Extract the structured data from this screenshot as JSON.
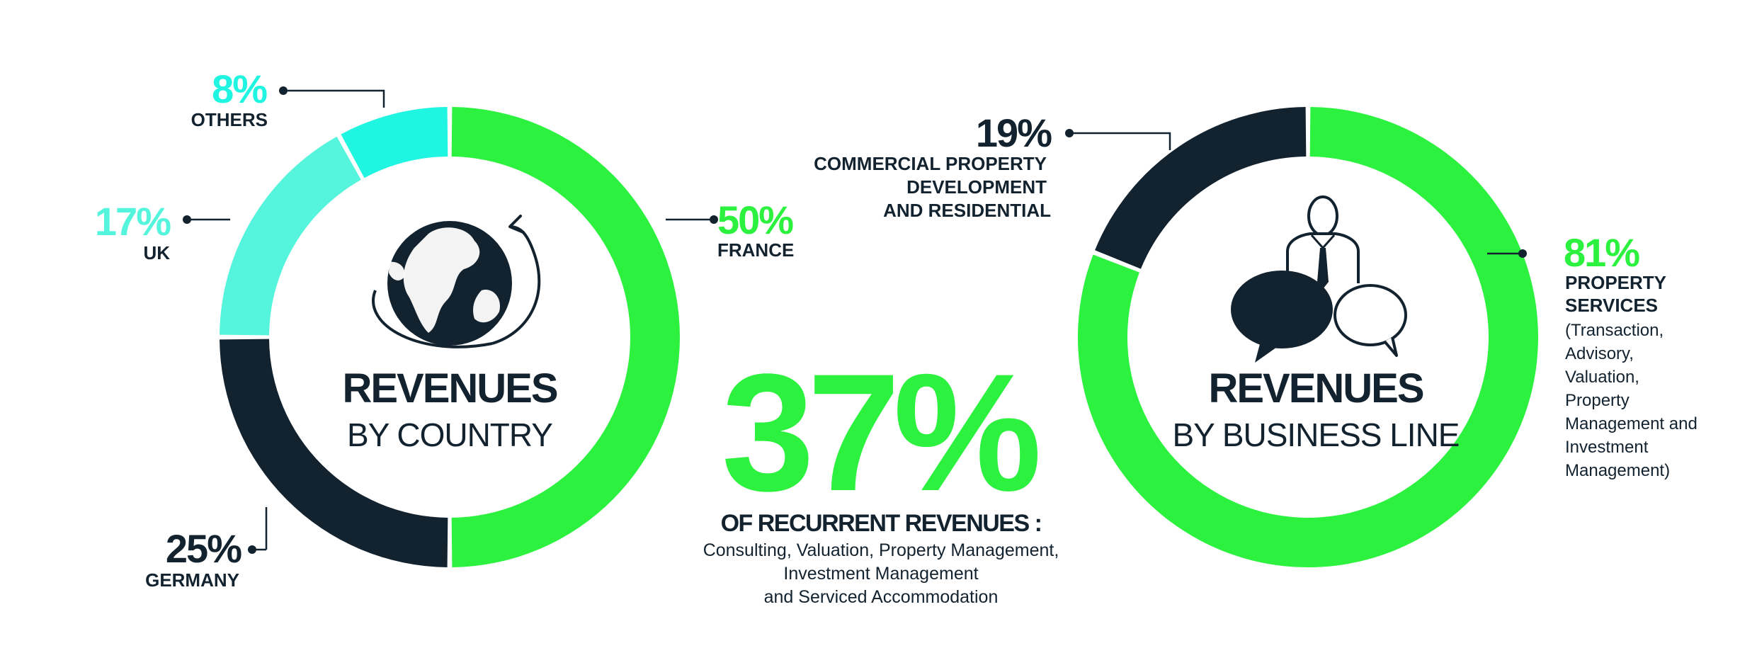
{
  "colors": {
    "green": "#2cf23f",
    "dark": "#13222f",
    "teal_light": "#55f4dc",
    "teal": "#1ff5e0",
    "white": "#ffffff",
    "leader": "#13222f"
  },
  "icons": {
    "left": "globe-icon",
    "right": "businessman-speech-bubbles-icon"
  },
  "chart_data": [
    {
      "type": "pie",
      "variant": "donut",
      "title": "REVENUES",
      "subtitle": "BY COUNTRY",
      "slices": [
        {
          "label": "FRANCE",
          "value": 50,
          "value_label": "50%",
          "color": "#2cf23f"
        },
        {
          "label": "GERMANY",
          "value": 25,
          "value_label": "25%",
          "color": "#13222f"
        },
        {
          "label": "UK",
          "value": 17,
          "value_label": "17%",
          "color": "#55f4dc"
        },
        {
          "label": "OTHERS",
          "value": 8,
          "value_label": "8%",
          "color": "#1ff5e0"
        }
      ]
    },
    {
      "type": "pie",
      "variant": "donut",
      "title": "REVENUES",
      "subtitle": "BY BUSINESS LINE",
      "slices": [
        {
          "label": "PROPERTY SERVICES",
          "label_lines": [
            "PROPERTY",
            "SERVICES"
          ],
          "detail_lines": [
            "(Transaction,",
            "Advisory,",
            "Valuation,",
            "Property",
            "Management and",
            "Investment",
            "Management)"
          ],
          "value": 81,
          "value_label": "81%",
          "color": "#2cf23f"
        },
        {
          "label": "COMMERCIAL PROPERTY DEVELOPMENT AND RESIDENTIAL",
          "label_lines": [
            "COMMERCIAL PROPERTY",
            "DEVELOPMENT",
            "AND RESIDENTIAL"
          ],
          "value": 19,
          "value_label": "19%",
          "color": "#13222f"
        }
      ]
    }
  ],
  "center_stat": {
    "value": "37%",
    "heading": "OF RECURRENT REVENUES :",
    "lines": [
      "Consulting, Valuation, Property Management,",
      "Investment Management",
      "and Serviced Accommodation"
    ]
  }
}
